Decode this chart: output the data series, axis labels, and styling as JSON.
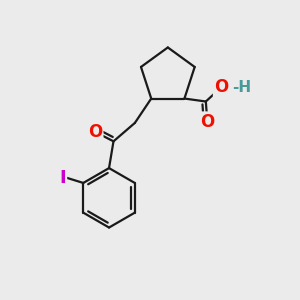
{
  "bg_color": "#ebebeb",
  "bond_color": "#1a1a1a",
  "bond_width": 1.6,
  "O_color": "#ee1100",
  "H_color": "#4a9a9a",
  "I_color": "#cc00cc",
  "font_size_atom": 11,
  "fig_bg": "#ebebeb",
  "xlim": [
    0,
    10
  ],
  "ylim": [
    0,
    10
  ]
}
